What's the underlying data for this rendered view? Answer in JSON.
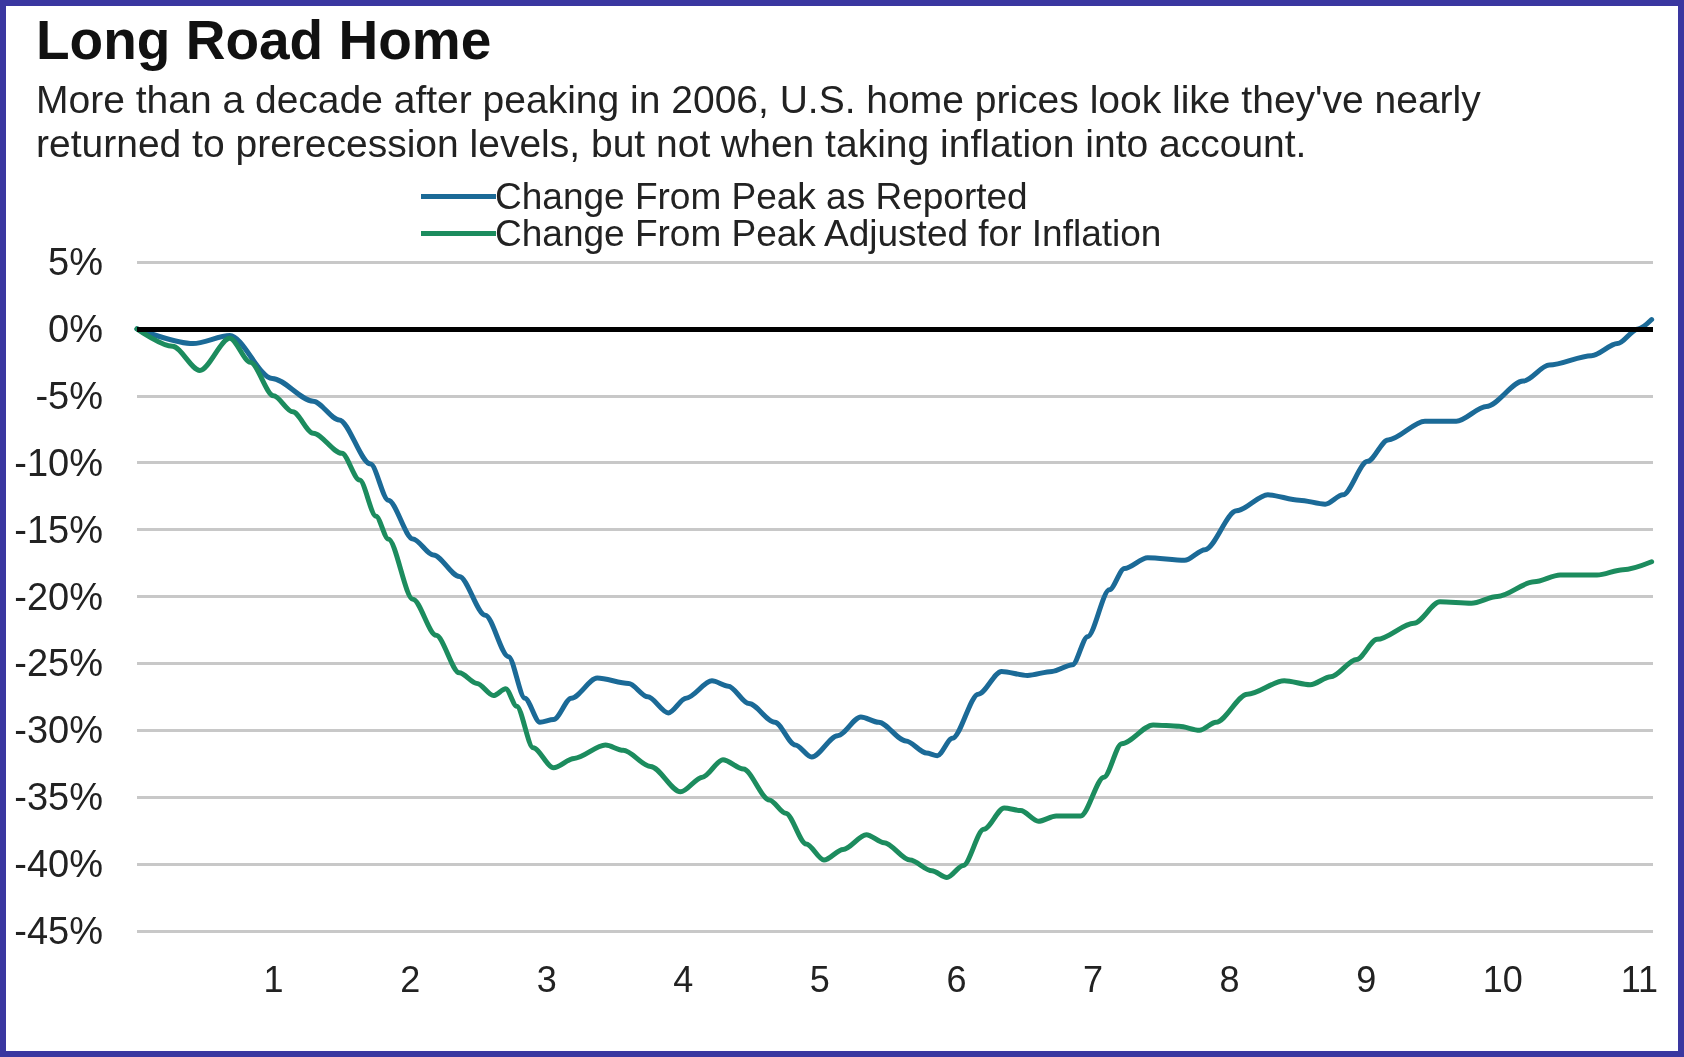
{
  "chart_data": {
    "type": "line",
    "title": "Long Road Home",
    "subtitle": "More than a decade after peaking in 2006, U.S. home prices look like they've nearly returned to prerecession levels, but not when taking inflation into account.",
    "xlim": [
      0,
      11.1
    ],
    "xticks": [
      1,
      2,
      3,
      4,
      5,
      6,
      7,
      8,
      9,
      10,
      11
    ],
    "ylim": [
      -45,
      5
    ],
    "yticks": [
      {
        "value": -45,
        "label": "-45%"
      },
      {
        "value": -40,
        "label": "-40%"
      },
      {
        "value": -35,
        "label": "-35%"
      },
      {
        "value": -30,
        "label": "-30%"
      },
      {
        "value": -25,
        "label": "-25%"
      },
      {
        "value": -20,
        "label": "-20%"
      },
      {
        "value": -15,
        "label": "-15%"
      },
      {
        "value": -10,
        "label": "-10%"
      },
      {
        "value": -5,
        "label": "-5%"
      },
      {
        "value": 0,
        "label": "0%"
      },
      {
        "value": 5,
        "label": "5%"
      }
    ],
    "grid": "y",
    "legend": "top",
    "marker": "none",
    "line_style": "solid",
    "ref_lines": [
      {
        "axis": "y",
        "value": 0,
        "color": "#000000"
      }
    ],
    "series": [
      {
        "name": "Change From Peak as Reported",
        "color": "#1b6a97",
        "x": [
          0,
          0.41,
          0.68,
          0.99,
          1.29,
          1.48,
          1.71,
          1.84,
          2.02,
          2.17,
          2.36,
          2.55,
          2.72,
          2.84,
          2.95,
          3.05,
          3.18,
          3.37,
          3.6,
          3.74,
          3.89,
          4.02,
          4.21,
          4.33,
          4.48,
          4.67,
          4.82,
          4.94,
          5.13,
          5.3,
          5.43,
          5.63,
          5.78,
          5.86,
          5.97,
          6.16,
          6.33,
          6.52,
          6.7,
          6.85,
          6.96,
          7.12,
          7.23,
          7.4,
          7.67,
          7.82,
          8.05,
          8.28,
          8.51,
          8.7,
          8.83,
          9.01,
          9.16,
          9.43,
          9.66,
          9.88,
          10.15,
          10.34,
          10.65,
          10.84,
          10.99,
          11.09
        ],
        "values": [
          0,
          -1.1,
          -0.5,
          -3.7,
          -5.4,
          -6.8,
          -10.1,
          -12.8,
          -15.7,
          -16.9,
          -18.5,
          -21.4,
          -24.5,
          -27.6,
          -29.4,
          -29.2,
          -27.6,
          -26.1,
          -26.5,
          -27.5,
          -28.7,
          -27.6,
          -26.3,
          -26.7,
          -28.0,
          -29.4,
          -31.1,
          -32.0,
          -30.4,
          -29.0,
          -29.4,
          -30.8,
          -31.7,
          -31.9,
          -30.6,
          -27.3,
          -25.6,
          -25.9,
          -25.6,
          -25.1,
          -23.0,
          -19.5,
          -17.9,
          -17.1,
          -17.3,
          -16.5,
          -13.6,
          -12.4,
          -12.8,
          -13.1,
          -12.4,
          -9.9,
          -8.3,
          -6.9,
          -6.9,
          -5.8,
          -3.9,
          -2.7,
          -2.0,
          -1.1,
          0.0,
          0.7
        ]
      },
      {
        "name": "Change From Peak Adjusted for Inflation",
        "color": "#1c8c5e",
        "x": [
          0,
          0.26,
          0.46,
          0.68,
          0.83,
          1.0,
          1.14,
          1.29,
          1.5,
          1.63,
          1.75,
          1.84,
          2.02,
          2.19,
          2.36,
          2.49,
          2.61,
          2.7,
          2.78,
          2.9,
          3.05,
          3.2,
          3.43,
          3.56,
          3.76,
          3.98,
          4.14,
          4.29,
          4.44,
          4.63,
          4.75,
          4.9,
          5.03,
          5.17,
          5.34,
          5.47,
          5.66,
          5.82,
          5.93,
          6.05,
          6.2,
          6.35,
          6.47,
          6.6,
          6.73,
          6.91,
          7.08,
          7.21,
          7.44,
          7.63,
          7.78,
          7.9,
          8.13,
          8.4,
          8.59,
          8.74,
          8.93,
          9.08,
          9.35,
          9.54,
          9.77,
          9.96,
          10.23,
          10.42,
          10.69,
          10.88,
          11.09
        ],
        "values": [
          0,
          -1.3,
          -3.1,
          -0.7,
          -2.5,
          -5.0,
          -6.2,
          -7.8,
          -9.3,
          -11.3,
          -14.0,
          -15.7,
          -20.2,
          -22.9,
          -25.7,
          -26.5,
          -27.4,
          -26.9,
          -28.2,
          -31.3,
          -32.8,
          -32.1,
          -31.1,
          -31.5,
          -32.7,
          -34.6,
          -33.5,
          -32.2,
          -32.9,
          -35.2,
          -36.2,
          -38.5,
          -39.7,
          -38.9,
          -37.8,
          -38.4,
          -39.7,
          -40.5,
          -41.0,
          -40.1,
          -37.4,
          -35.8,
          -36.0,
          -36.8,
          -36.4,
          -36.4,
          -33.5,
          -31.0,
          -29.6,
          -29.7,
          -30.0,
          -29.4,
          -27.3,
          -26.3,
          -26.6,
          -26.0,
          -24.7,
          -23.2,
          -22.0,
          -20.4,
          -20.5,
          -20.0,
          -18.9,
          -18.4,
          -18.4,
          -18.0,
          -17.4
        ]
      }
    ]
  }
}
